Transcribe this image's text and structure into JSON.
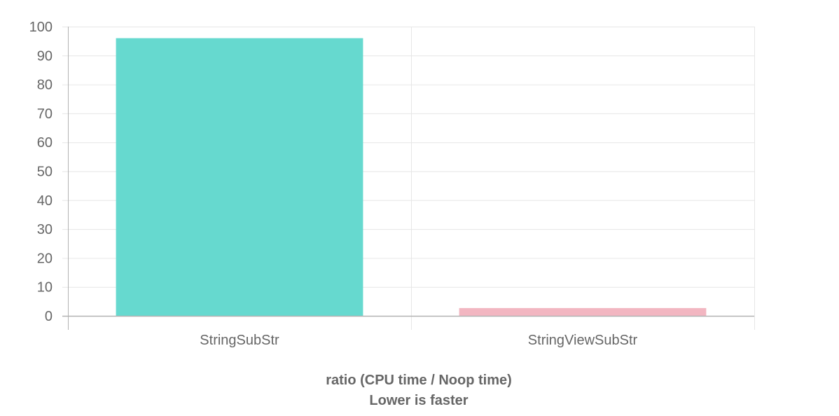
{
  "chart_data": {
    "type": "bar",
    "categories": [
      "StringSubStr",
      "StringViewSubStr"
    ],
    "series": [
      {
        "values": [
          96,
          2.7
        ],
        "colors": [
          "#66d9cf",
          "#f2b6c1"
        ]
      }
    ],
    "ylim": [
      0,
      100
    ],
    "yticks": [
      0,
      10,
      20,
      30,
      40,
      50,
      60,
      70,
      80,
      90,
      100
    ],
    "xlabel": "ratio (CPU time / Noop time)",
    "xlabel_sub": "Lower is faster",
    "grid": true,
    "legend": "none"
  },
  "colors": {
    "grid": "#e6e6e6",
    "axis": "#b3b3b3",
    "text": "#666666"
  }
}
